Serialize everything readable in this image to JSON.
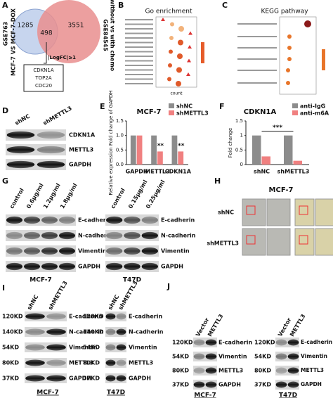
{
  "panels": {
    "A": {
      "letter": "A",
      "left_label": "GSE763",
      "left_sublabel": "MCF-7 VS MCF-7-DOX",
      "right_label": "GSE84545",
      "right_sublabel": "without vs with chemo",
      "left_only": "1285",
      "overlap": "498",
      "right_only": "3551",
      "criterion": "|LogFC|≥1",
      "genes": [
        "CDKN1A",
        "TOP2A",
        "CDC20"
      ]
    },
    "B": {
      "letter": "B",
      "title": "Go enrichment",
      "xlabel": "count"
    },
    "C": {
      "letter": "C",
      "title": "KEGG pathway"
    },
    "D": {
      "letter": "D",
      "lanes": [
        "shNC",
        "shMETTL3"
      ],
      "bands": [
        "CDKN1A",
        "METTL3",
        "GAPDH"
      ]
    },
    "G": {
      "letter": "G",
      "left_lanes": [
        "control",
        "0.6μg/ml",
        "1.2μg/ml",
        "1.8μg/ml"
      ],
      "right_lanes": [
        "control",
        "0.15μg/ml",
        "0.25μg/ml"
      ],
      "bands": [
        "E-cadherin",
        "N-cadherin",
        "Vimentin",
        "GAPDH"
      ],
      "cells": [
        "MCF-7",
        "T47D"
      ]
    },
    "H": {
      "letter": "H",
      "title": "MCF-7",
      "rows": [
        "shNC",
        "shMETTL3"
      ]
    },
    "I": {
      "letter": "I",
      "lanes": [
        "shNC",
        "shMETTL3"
      ],
      "sizes": [
        "120KD",
        "140KD",
        "54KD",
        "80KD",
        "37KD"
      ],
      "bands": [
        "E-cadherin",
        "N-cadherin",
        "Vimentin",
        "METTL3",
        "GAPDH"
      ],
      "cells": [
        "MCF-7",
        "T47D"
      ]
    },
    "J": {
      "letter": "J",
      "lanes": [
        "Vector",
        "METTL3"
      ],
      "sizes": [
        "120KD",
        "54KD",
        "80KD",
        "37KD"
      ],
      "bands": [
        "E-cadherin",
        "Vimentin",
        "METTL3",
        "GAPDH"
      ],
      "cells": [
        "MCF-7",
        "T47D"
      ]
    }
  },
  "chart_data": [
    {
      "type": "bar",
      "panel_label": "E",
      "title": "MCF-7",
      "ylabel": "Relative expression Fold change of GAPDH",
      "categories": [
        "GAPDH",
        "METTL3",
        "CDKN1A"
      ],
      "series": [
        {
          "name": "shNC",
          "color": "#8c8c8c",
          "values": [
            1.0,
            1.0,
            1.0
          ]
        },
        {
          "name": "shMETTL3",
          "color": "#f08080",
          "values": [
            1.0,
            0.45,
            0.45
          ]
        }
      ],
      "ylim": [
        0,
        1.5
      ],
      "yticks": [
        {
          "value": 0,
          "label": "0.0"
        },
        {
          "value": 0.5,
          "label": "0.5"
        },
        {
          "value": 1,
          "label": "1.0"
        },
        {
          "value": 1.5,
          "label": "1.5"
        }
      ],
      "annotations": [
        "**",
        "**"
      ]
    },
    {
      "type": "bar",
      "panel_label": "F",
      "title": "CDKN1A",
      "ylabel": "Fold change",
      "categories": [
        "shNC",
        "shMETTL3"
      ],
      "series": [
        {
          "name": "anti-IgG",
          "color": "#8c8c8c",
          "values": [
            1.0,
            1.0
          ]
        },
        {
          "name": "anti-m6A",
          "color": "#f08080",
          "values": [
            0.28,
            0.13
          ]
        }
      ],
      "ylim": [
        0,
        1.5
      ],
      "yticks": [
        0,
        0.5,
        1,
        1.5
      ],
      "annotations": [
        "***"
      ]
    }
  ]
}
